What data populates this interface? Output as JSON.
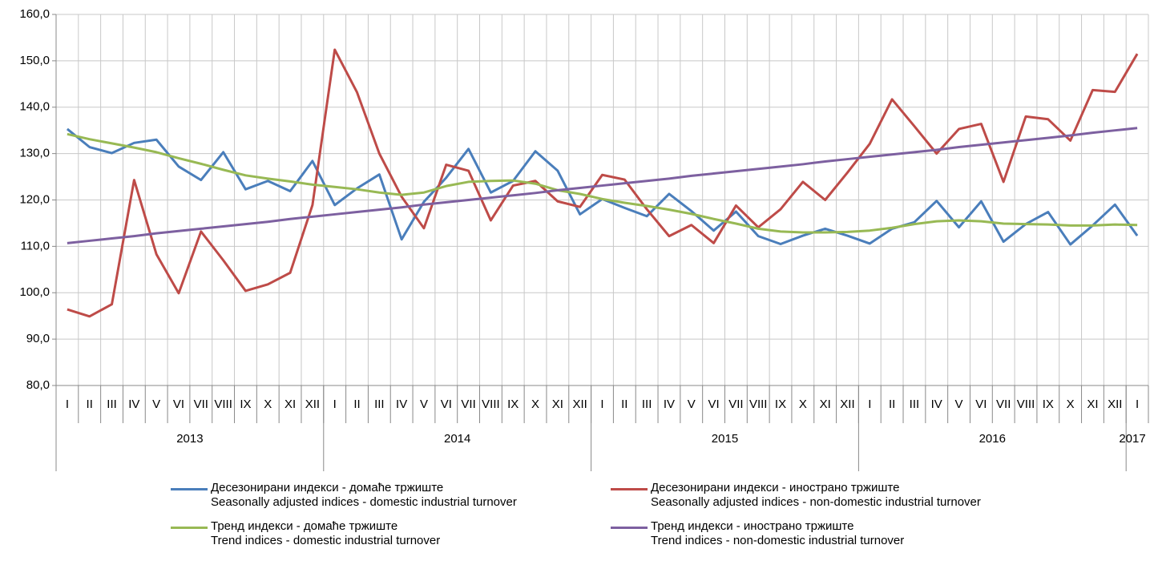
{
  "chart_data": {
    "type": "line",
    "category_groups": [
      {
        "label": "2013",
        "categories": [
          "I",
          "II",
          "III",
          "IV",
          "V",
          "VI",
          "VII",
          "VIII",
          "IX",
          "X",
          "XI",
          "XII"
        ]
      },
      {
        "label": "2014",
        "categories": [
          "I",
          "II",
          "III",
          "IV",
          "V",
          "VI",
          "VII",
          "VIII",
          "IX",
          "X",
          "XI",
          "XII"
        ]
      },
      {
        "label": "2015",
        "categories": [
          "I",
          "II",
          "III",
          "IV",
          "V",
          "VI",
          "VII",
          "VIII",
          "IX",
          "X",
          "XI",
          "XII"
        ]
      },
      {
        "label": "2016",
        "categories": [
          "I",
          "II",
          "III",
          "IV",
          "V",
          "VI",
          "VII",
          "VIII",
          "IX",
          "X",
          "XI",
          "XII"
        ]
      },
      {
        "label": "2017",
        "categories": [
          "I"
        ]
      }
    ],
    "ylim": [
      80,
      160
    ],
    "yticks": [
      {
        "value": 80,
        "label": "80,0"
      },
      {
        "value": 90,
        "label": "90,0"
      },
      {
        "value": 100,
        "label": "100,0"
      },
      {
        "value": 110,
        "label": "110,0"
      },
      {
        "value": 120,
        "label": "120,0"
      },
      {
        "value": 130,
        "label": "130,0"
      },
      {
        "value": 140,
        "label": "140,0"
      },
      {
        "value": 150,
        "label": "150,0"
      },
      {
        "value": 160,
        "label": "160,0"
      }
    ],
    "grid": true,
    "series": [
      {
        "name": "Десезонирани индекси - домаће тржиште\nSeasonally adjusted indices - domestic industrial turnover",
        "color": "#4a7ebb",
        "values": [
          135.3,
          131.4,
          130.1,
          132.3,
          133.0,
          127.2,
          124.3,
          130.3,
          122.3,
          124.1,
          121.9,
          128.4,
          118.9,
          122.5,
          125.5,
          111.5,
          119.6,
          124.8,
          131.0,
          121.6,
          124.1,
          130.5,
          126.3,
          116.9,
          120.2,
          118.3,
          116.5,
          121.3,
          117.6,
          113.4,
          117.5,
          112.2,
          110.5,
          112.3,
          113.8,
          112.3,
          110.6,
          113.8,
          115.2,
          119.8,
          114.1,
          119.7,
          111.0,
          114.8,
          117.4,
          110.4,
          114.5,
          119.0,
          112.3
        ]
      },
      {
        "name": "Десезонирани индекси - иностранo тржиште\nSeasonally adjusted indices - non-domestic industrial turnover",
        "color": "#be4b48",
        "values": [
          96.4,
          94.9,
          97.5,
          124.3,
          108.3,
          99.9,
          113.2,
          107.0,
          100.4,
          101.8,
          104.3,
          118.9,
          152.4,
          143.2,
          130.0,
          120.7,
          113.9,
          127.6,
          126.3,
          115.6,
          123.1,
          124.1,
          119.7,
          118.5,
          125.4,
          124.4,
          118.0,
          112.2,
          114.6,
          110.7,
          118.8,
          114.1,
          118.0,
          123.9,
          120.0,
          125.9,
          132.1,
          141.7,
          135.9,
          130.0,
          135.3,
          136.4,
          123.9,
          138.0,
          137.4,
          132.8,
          143.7,
          143.3,
          151.5
        ]
      },
      {
        "name": "Тренд индекси - домаће тржиште\nTrend indices - domestic industrial turnover",
        "color": "#98b954",
        "values": [
          134.2,
          133.1,
          132.2,
          131.3,
          130.3,
          129.0,
          127.8,
          126.5,
          125.3,
          124.6,
          124.0,
          123.3,
          122.8,
          122.3,
          121.6,
          121.1,
          121.6,
          123.0,
          123.9,
          124.1,
          124.2,
          123.5,
          122.1,
          121.3,
          120.2,
          119.4,
          118.7,
          117.9,
          117.0,
          115.9,
          114.9,
          113.8,
          113.2,
          113.0,
          113.0,
          113.1,
          113.4,
          114.0,
          114.8,
          115.4,
          115.6,
          115.4,
          114.9,
          114.8,
          114.7,
          114.5,
          114.5,
          114.7,
          114.6
        ]
      },
      {
        "name": "Тренд индекси - иностранo тржиште\nTrend indices - non-domestic industrial turnover",
        "color": "#7d60a0",
        "values": [
          110.7,
          111.2,
          111.7,
          112.2,
          112.8,
          113.3,
          113.8,
          114.3,
          114.8,
          115.3,
          115.9,
          116.4,
          116.9,
          117.4,
          117.9,
          118.4,
          119.0,
          119.5,
          120.0,
          120.5,
          121.0,
          121.5,
          122.1,
          122.6,
          123.1,
          123.6,
          124.1,
          124.6,
          125.2,
          125.7,
          126.2,
          126.7,
          127.2,
          127.7,
          128.3,
          128.8,
          129.3,
          129.8,
          130.3,
          130.8,
          131.4,
          131.9,
          132.4,
          132.9,
          133.4,
          133.9,
          134.5,
          135.0,
          135.5
        ]
      }
    ]
  }
}
